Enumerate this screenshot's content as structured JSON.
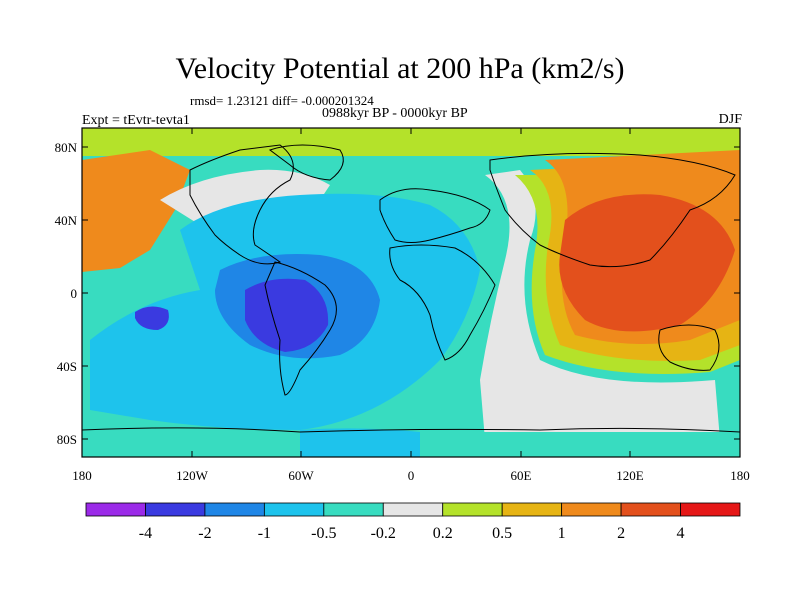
{
  "header": {
    "title": "Velocity Potential at 200 hPa (km2/s)",
    "stats": "rmsd= 1.23121 diff= -0.000201324",
    "period": "0988kyr BP - 0000kyr BP",
    "experiment": "Expt = tEvtr-tevta1",
    "season": "DJF"
  },
  "map": {
    "lat_labels": [
      "80N",
      "40N",
      "0",
      "40S",
      "80S"
    ],
    "lon_labels": [
      "180",
      "120W",
      "60W",
      "0",
      "60E",
      "120E",
      "180"
    ]
  },
  "colorbar": {
    "levels": [
      "-4",
      "-2",
      "-1",
      "-0.5",
      "-0.2",
      "0.2",
      "0.5",
      "1",
      "2",
      "4"
    ],
    "colors": [
      "#9b2ae8",
      "#3a3ae0",
      "#1f86e6",
      "#1ec3ec",
      "#38dcc0",
      "#e6e6e6",
      "#b4e22a",
      "#e6b414",
      "#ef8a1c",
      "#e3501c",
      "#e51717"
    ]
  }
}
